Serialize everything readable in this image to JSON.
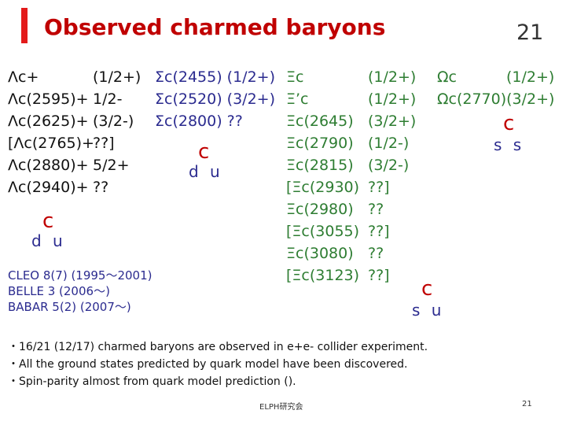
{
  "slide": {
    "title": "Observed charmed baryons",
    "number": "21"
  },
  "lambda_c": [
    {
      "name": "Λc+",
      "jp": "(1/2+)"
    },
    {
      "name": "Λc(2595)+",
      "jp": "1/2-"
    },
    {
      "name": "Λc(2625)+",
      "jp": "(3/2-)"
    },
    {
      "name": "[Λc(2765)+",
      "jp": "??]"
    },
    {
      "name": "Λc(2880)+",
      "jp": "5/2+"
    },
    {
      "name": "Λc(2940)+",
      "jp": "??"
    }
  ],
  "lambda_quarks": {
    "heavy": "c",
    "light": "d u"
  },
  "sigma_c": [
    {
      "name": "Σc(2455) (1/2+)"
    },
    {
      "name": "Σc(2520) (3/2+)"
    },
    {
      "name": "Σc(2800) ??"
    }
  ],
  "sigma_quarks": {
    "heavy": "c",
    "light": "d u"
  },
  "xi_c": [
    {
      "name": "Ξc",
      "jp": "(1/2+)"
    },
    {
      "name": "Ξ’c",
      "jp": "(1/2+)"
    },
    {
      "name": "Ξc(2645)",
      "jp": "(3/2+)"
    },
    {
      "name": "Ξc(2790)",
      "jp": "(1/2-)"
    },
    {
      "name": "Ξc(2815)",
      "jp": "(3/2-)"
    },
    {
      "name": "[Ξc(2930)",
      "jp": "??]"
    },
    {
      "name": "Ξc(2980)",
      "jp": "??"
    },
    {
      "name": "[Ξc(3055)",
      "jp": "??]"
    },
    {
      "name": "Ξc(3080)",
      "jp": "??"
    },
    {
      "name": "[Ξc(3123)",
      "jp": "??]"
    }
  ],
  "xi_quarks": {
    "heavy": "c",
    "light": "s u"
  },
  "omega_c": [
    {
      "name": "Ωc",
      "jp": "(1/2+)"
    },
    {
      "name": "Ωc(2770)(3/2+)",
      "jp": ""
    }
  ],
  "omega_quarks": {
    "heavy": "c",
    "light": "s s"
  },
  "experiments": [
    "CLEO   8(7) (1995～2001)",
    "BELLE  3     (2006～)",
    "BABAR  5(2) (2007～)"
  ],
  "bullets": [
    "・16/21 (12/17) charmed baryons are observed in e+e- collider experiment.",
    "・All the ground states predicted by quark model have been discovered.",
    "・Spin-parity almost from quark model prediction ()."
  ],
  "footer": {
    "center": "ELPH研究会",
    "page": "21"
  },
  "colors": {
    "title": "#c00000",
    "accent_bar": "#e31b1b",
    "lambda": "#111111",
    "sigma": "#2b2b8f",
    "xi_omega": "#2e7d32"
  }
}
